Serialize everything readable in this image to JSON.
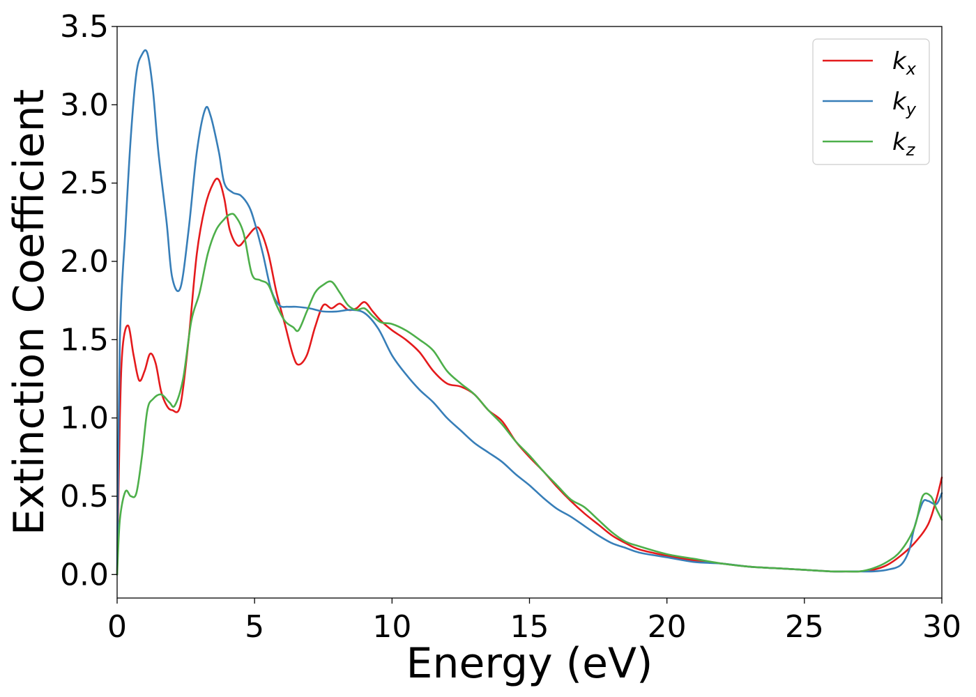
{
  "chart_data": {
    "type": "line",
    "xlabel": "Energy (eV)",
    "ylabel": "Extinction Coefficient",
    "xlim": [
      0,
      30
    ],
    "ylim": [
      -0.15,
      3.5
    ],
    "xticks": [
      "0",
      "5",
      "10",
      "15",
      "20",
      "25",
      "30"
    ],
    "yticks": [
      "0.0",
      "0.5",
      "1.0",
      "1.5",
      "2.0",
      "2.5",
      "3.0",
      "3.5"
    ],
    "grid": false,
    "legend_position": "top-right",
    "series": [
      {
        "name": "k",
        "subscript": "x",
        "color": "#e41a1c",
        "x": [
          0,
          0.1,
          0.2,
          0.4,
          0.6,
          0.8,
          1.0,
          1.2,
          1.4,
          1.6,
          1.8,
          2.0,
          2.3,
          2.6,
          2.9,
          3.2,
          3.5,
          3.7,
          3.9,
          4.1,
          4.4,
          4.7,
          5.0,
          5.2,
          5.5,
          5.8,
          6.1,
          6.4,
          6.6,
          6.9,
          7.2,
          7.5,
          7.8,
          8.1,
          8.4,
          8.7,
          9.0,
          9.3,
          9.6,
          10.0,
          10.5,
          11.0,
          11.5,
          12.0,
          12.5,
          13.0,
          13.5,
          14.0,
          14.5,
          15.0,
          15.5,
          16.0,
          16.5,
          17.0,
          17.5,
          18.0,
          18.5,
          19.0,
          20.0,
          21.0,
          22.0,
          23.0,
          24.0,
          25.0,
          26.0,
          26.5,
          27.0,
          27.5,
          28.0,
          28.5,
          29.0,
          29.5,
          29.8,
          30.0
        ],
        "values": [
          0.0,
          1.0,
          1.45,
          1.59,
          1.4,
          1.24,
          1.3,
          1.41,
          1.35,
          1.17,
          1.08,
          1.05,
          1.08,
          1.5,
          2.05,
          2.35,
          2.5,
          2.52,
          2.4,
          2.2,
          2.1,
          2.15,
          2.21,
          2.2,
          2.05,
          1.8,
          1.6,
          1.4,
          1.34,
          1.4,
          1.58,
          1.72,
          1.7,
          1.73,
          1.69,
          1.7,
          1.74,
          1.68,
          1.62,
          1.56,
          1.5,
          1.42,
          1.3,
          1.22,
          1.2,
          1.15,
          1.05,
          0.98,
          0.85,
          0.75,
          0.66,
          0.56,
          0.47,
          0.39,
          0.32,
          0.25,
          0.2,
          0.16,
          0.12,
          0.09,
          0.07,
          0.05,
          0.04,
          0.03,
          0.02,
          0.02,
          0.02,
          0.03,
          0.06,
          0.12,
          0.2,
          0.32,
          0.48,
          0.62
        ]
      },
      {
        "name": "k",
        "subscript": "y",
        "color": "#377eb8",
        "x": [
          0,
          0.1,
          0.3,
          0.5,
          0.7,
          0.9,
          1.1,
          1.3,
          1.5,
          1.8,
          2.0,
          2.3,
          2.6,
          2.9,
          3.2,
          3.4,
          3.7,
          3.9,
          4.2,
          4.5,
          4.8,
          5.0,
          5.3,
          5.6,
          5.9,
          6.2,
          6.5,
          7.0,
          7.5,
          8.0,
          8.5,
          9.0,
          9.5,
          10.0,
          10.5,
          11.0,
          11.5,
          12.0,
          12.5,
          13.0,
          13.5,
          14.0,
          14.5,
          15.0,
          15.5,
          16.0,
          16.5,
          17.0,
          17.5,
          18.0,
          18.5,
          19.0,
          20.0,
          21.0,
          22.0,
          23.0,
          24.0,
          25.0,
          26.0,
          26.5,
          27.0,
          27.5,
          28.0,
          28.5,
          28.8,
          29.0,
          29.3,
          29.5,
          29.8,
          30.0
        ],
        "values": [
          0.0,
          1.5,
          2.2,
          2.8,
          3.2,
          3.32,
          3.33,
          3.1,
          2.7,
          2.25,
          1.9,
          1.83,
          2.2,
          2.7,
          2.97,
          2.93,
          2.7,
          2.5,
          2.44,
          2.42,
          2.35,
          2.25,
          2.05,
          1.82,
          1.72,
          1.71,
          1.71,
          1.7,
          1.68,
          1.68,
          1.69,
          1.67,
          1.57,
          1.4,
          1.28,
          1.18,
          1.1,
          1.0,
          0.92,
          0.84,
          0.78,
          0.72,
          0.64,
          0.57,
          0.49,
          0.42,
          0.37,
          0.31,
          0.25,
          0.2,
          0.17,
          0.14,
          0.11,
          0.08,
          0.07,
          0.05,
          0.04,
          0.03,
          0.02,
          0.02,
          0.02,
          0.02,
          0.03,
          0.06,
          0.15,
          0.3,
          0.46,
          0.47,
          0.45,
          0.52
        ]
      },
      {
        "name": "k",
        "subscript": "z",
        "color": "#4daf4a",
        "x": [
          0,
          0.1,
          0.3,
          0.5,
          0.7,
          0.9,
          1.1,
          1.3,
          1.6,
          1.9,
          2.1,
          2.4,
          2.7,
          3.0,
          3.3,
          3.6,
          3.9,
          4.1,
          4.3,
          4.6,
          4.9,
          5.2,
          5.5,
          5.8,
          6.1,
          6.4,
          6.6,
          6.9,
          7.2,
          7.5,
          7.8,
          8.1,
          8.4,
          8.7,
          9.0,
          9.3,
          9.6,
          10.0,
          10.5,
          11.0,
          11.5,
          12.0,
          12.5,
          13.0,
          13.5,
          14.0,
          14.5,
          15.0,
          15.5,
          16.0,
          16.5,
          17.0,
          17.5,
          18.0,
          18.5,
          19.0,
          20.0,
          21.0,
          22.0,
          23.0,
          24.0,
          25.0,
          26.0,
          26.5,
          27.0,
          27.5,
          28.0,
          28.5,
          29.0,
          29.3,
          29.6,
          29.8,
          30.0
        ],
        "values": [
          0.0,
          0.35,
          0.53,
          0.5,
          0.52,
          0.75,
          1.05,
          1.12,
          1.15,
          1.1,
          1.08,
          1.25,
          1.62,
          1.8,
          2.05,
          2.2,
          2.27,
          2.3,
          2.29,
          2.18,
          1.92,
          1.88,
          1.85,
          1.72,
          1.62,
          1.58,
          1.56,
          1.68,
          1.8,
          1.85,
          1.87,
          1.8,
          1.72,
          1.69,
          1.7,
          1.65,
          1.61,
          1.6,
          1.56,
          1.5,
          1.43,
          1.3,
          1.22,
          1.15,
          1.05,
          0.96,
          0.85,
          0.76,
          0.66,
          0.57,
          0.48,
          0.43,
          0.35,
          0.27,
          0.21,
          0.18,
          0.13,
          0.1,
          0.07,
          0.05,
          0.04,
          0.03,
          0.02,
          0.02,
          0.02,
          0.04,
          0.08,
          0.15,
          0.3,
          0.5,
          0.5,
          0.42,
          0.35
        ]
      }
    ]
  }
}
